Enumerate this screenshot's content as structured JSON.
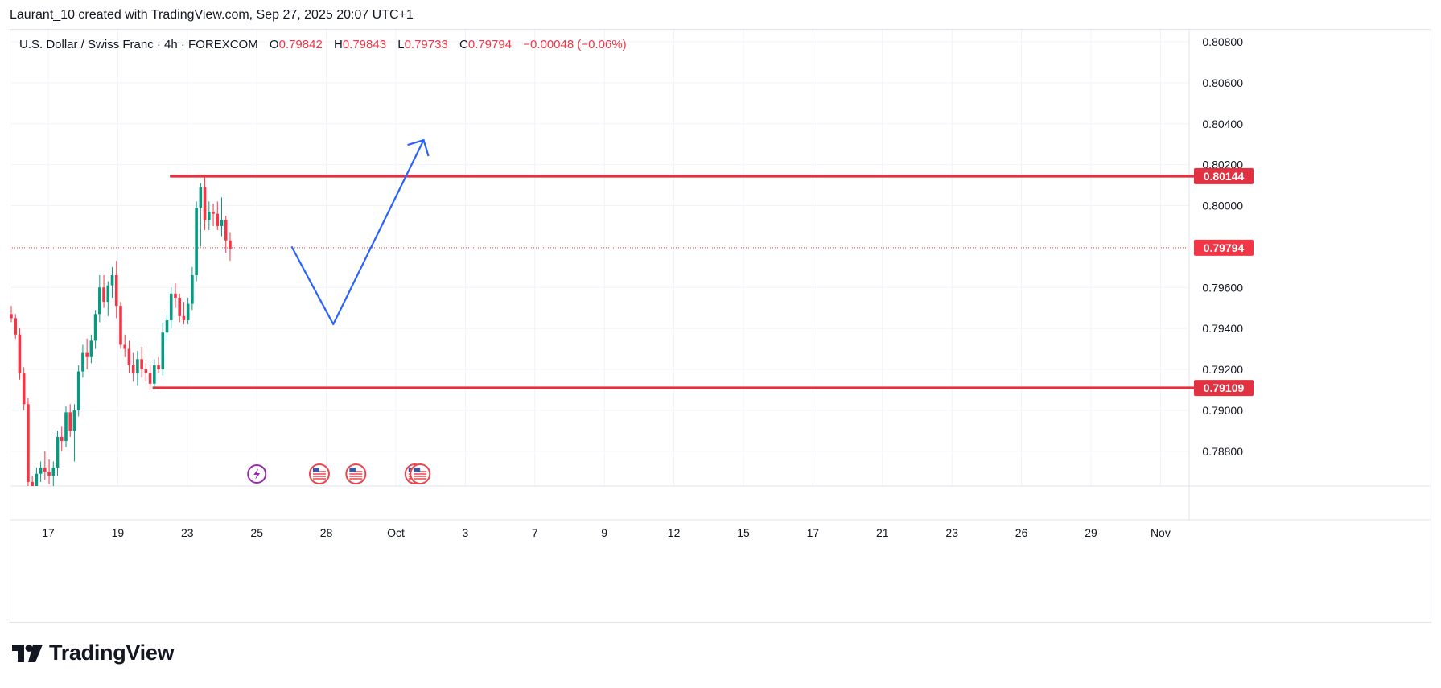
{
  "header": {
    "attribution": "Laurant_10 created with TradingView.com, Sep 27, 2025 20:07 UTC+1"
  },
  "legend": {
    "symbol": "U.S. Dollar / Swiss Franc · 4h · FOREXCOM",
    "open_label": "O",
    "open": "0.79842",
    "high_label": "H",
    "high": "0.79843",
    "low_label": "L",
    "low": "0.79733",
    "close_label": "C",
    "close": "0.79794",
    "change": "−0.00048 (−0.06%)"
  },
  "footer": {
    "brand": "TradingView"
  },
  "colors": {
    "up": "#089981",
    "down": "#f23645",
    "level": "#e03240",
    "arrow": "#2962ff",
    "event_purple": "#9c27b0",
    "event_red": "#e8474f"
  },
  "chart_data": {
    "type": "candlestick",
    "interval": "4h",
    "ylim": [
      0.7866,
      0.8092
    ],
    "y_ticks": [
      "0.80800",
      "0.80600",
      "0.80400",
      "0.80200",
      "0.80000",
      "0.79600",
      "0.79400",
      "0.79200",
      "0.79000",
      "0.78800"
    ],
    "x_ticks": [
      {
        "label": "17",
        "day": 17
      },
      {
        "label": "19",
        "day": 19
      },
      {
        "label": "23",
        "day": 21
      },
      {
        "label": "25",
        "day": 23
      },
      {
        "label": "28",
        "day": 25
      },
      {
        "label": "Oct",
        "day": 27
      },
      {
        "label": "3",
        "day": 29
      },
      {
        "label": "7",
        "day": 31
      },
      {
        "label": "9",
        "day": 33
      },
      {
        "label": "12",
        "day": 35
      },
      {
        "label": "15",
        "day": 37
      },
      {
        "label": "17",
        "day": 39
      },
      {
        "label": "21",
        "day": 41
      },
      {
        "label": "23",
        "day": 43
      },
      {
        "label": "26",
        "day": 45
      },
      {
        "label": "29",
        "day": 47
      },
      {
        "label": "Nov",
        "day": 49
      }
    ],
    "candles": [
      [
        0.7947,
        0.7951,
        0.7943,
        0.7945
      ],
      [
        0.7945,
        0.7947,
        0.7935,
        0.7937
      ],
      [
        0.7937,
        0.794,
        0.7915,
        0.7918
      ],
      [
        0.7918,
        0.7921,
        0.79,
        0.7903
      ],
      [
        0.7903,
        0.7906,
        0.7862,
        0.7865
      ],
      [
        0.7865,
        0.7868,
        0.786,
        0.7863
      ],
      [
        0.7863,
        0.7872,
        0.786,
        0.7869
      ],
      [
        0.7869,
        0.7875,
        0.7865,
        0.7872
      ],
      [
        0.7872,
        0.788,
        0.7866,
        0.787
      ],
      [
        0.787,
        0.7876,
        0.7864,
        0.7868
      ],
      [
        0.7868,
        0.7875,
        0.7862,
        0.7872
      ],
      [
        0.7872,
        0.789,
        0.7868,
        0.7887
      ],
      [
        0.7887,
        0.7892,
        0.788,
        0.7885
      ],
      [
        0.7885,
        0.7902,
        0.7882,
        0.7899
      ],
      [
        0.7899,
        0.7903,
        0.7887,
        0.789
      ],
      [
        0.789,
        0.7903,
        0.7875,
        0.79
      ],
      [
        0.79,
        0.7922,
        0.7897,
        0.7919
      ],
      [
        0.7919,
        0.7932,
        0.7916,
        0.7928
      ],
      [
        0.7928,
        0.7935,
        0.792,
        0.7926
      ],
      [
        0.7926,
        0.7937,
        0.7923,
        0.7934
      ],
      [
        0.7934,
        0.7949,
        0.793,
        0.7947
      ],
      [
        0.7947,
        0.7966,
        0.7943,
        0.796
      ],
      [
        0.796,
        0.7966,
        0.795,
        0.7953
      ],
      [
        0.7953,
        0.7963,
        0.7946,
        0.7961
      ],
      [
        0.7961,
        0.797,
        0.7955,
        0.7966
      ],
      [
        0.7966,
        0.7973,
        0.7945,
        0.7951
      ],
      [
        0.7951,
        0.7953,
        0.793,
        0.7932
      ],
      [
        0.7932,
        0.7937,
        0.7926,
        0.793
      ],
      [
        0.793,
        0.7934,
        0.7918,
        0.7922
      ],
      [
        0.7922,
        0.7928,
        0.7914,
        0.7918
      ],
      [
        0.7918,
        0.7929,
        0.7912,
        0.7925
      ],
      [
        0.7925,
        0.7931,
        0.7916,
        0.792
      ],
      [
        0.792,
        0.7923,
        0.7914,
        0.7918
      ],
      [
        0.7918,
        0.7922,
        0.791,
        0.7913
      ],
      [
        0.7913,
        0.7925,
        0.791,
        0.7922
      ],
      [
        0.7922,
        0.7926,
        0.7918,
        0.792
      ],
      [
        0.792,
        0.7943,
        0.7917,
        0.7938
      ],
      [
        0.7938,
        0.7947,
        0.7934,
        0.7944
      ],
      [
        0.7944,
        0.796,
        0.794,
        0.7957
      ],
      [
        0.7957,
        0.7962,
        0.795,
        0.7955
      ],
      [
        0.7955,
        0.7957,
        0.7943,
        0.7946
      ],
      [
        0.7946,
        0.7953,
        0.7942,
        0.7944
      ],
      [
        0.7944,
        0.7955,
        0.7942,
        0.7952
      ],
      [
        0.7952,
        0.797,
        0.7949,
        0.7966
      ],
      [
        0.7966,
        0.8002,
        0.7963,
        0.7999
      ],
      [
        0.7999,
        0.8011,
        0.798,
        0.8009
      ],
      [
        0.8009,
        0.8014,
        0.7988,
        0.7993
      ],
      [
        0.7993,
        0.8002,
        0.7988,
        0.7997
      ],
      [
        0.7997,
        0.8001,
        0.799,
        0.7996
      ],
      [
        0.7996,
        0.8002,
        0.7988,
        0.799
      ],
      [
        0.799,
        0.8004,
        0.7985,
        0.7993
      ],
      [
        0.7993,
        0.7995,
        0.7977,
        0.7983
      ],
      [
        0.7983,
        0.7987,
        0.7973,
        0.7979
      ]
    ],
    "levels": [
      {
        "price": 0.80144,
        "label": "0.80144",
        "x_from_day": 20.5
      },
      {
        "price": 0.79109,
        "label": "0.79109",
        "x_from_day": 20.0
      }
    ],
    "last_price": {
      "price": 0.79794,
      "label": "0.79794"
    },
    "projection": [
      {
        "day": 24.0,
        "price": 0.798
      },
      {
        "day": 25.2,
        "price": 0.7942
      },
      {
        "day": 27.8,
        "price": 0.8032
      }
    ],
    "events": [
      {
        "day": 23.0,
        "kind": "lightning"
      },
      {
        "day": 24.8,
        "kind": "flag-us"
      },
      {
        "day": 25.85,
        "kind": "flag-us"
      },
      {
        "day": 27.55,
        "kind": "flag-us"
      },
      {
        "day": 27.7,
        "kind": "flag-us"
      }
    ]
  }
}
